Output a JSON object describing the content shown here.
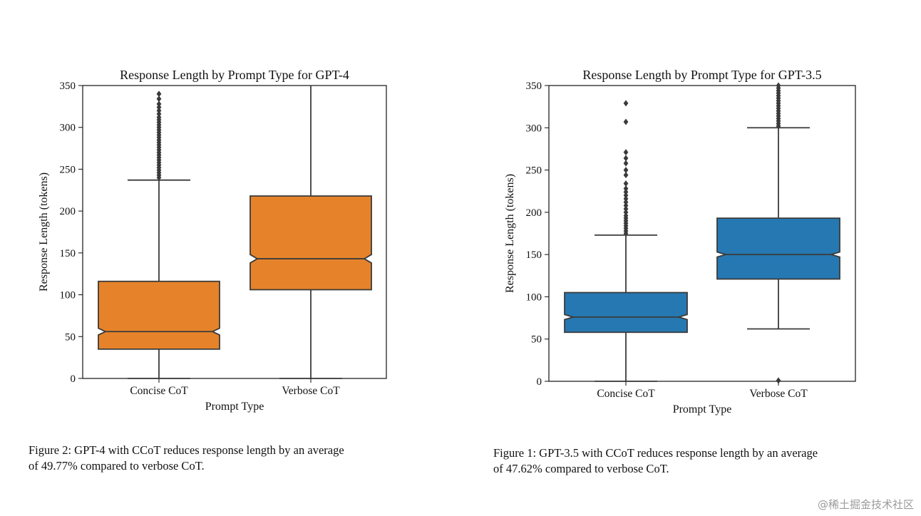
{
  "chart_data": [
    {
      "type": "boxplot",
      "title": "Response Length by Prompt Type for GPT-4",
      "xlabel": "Prompt Type",
      "ylabel": "Response Length (tokens)",
      "ylim": [
        0,
        350
      ],
      "yticks": [
        0,
        50,
        100,
        150,
        200,
        250,
        300,
        350
      ],
      "notched": true,
      "color": "#E6832A",
      "categories": [
        "Concise CoT",
        "Verbose CoT"
      ],
      "boxes": [
        {
          "category": "Concise CoT",
          "whisker_low": 0,
          "q1": 35,
          "median": 56,
          "q3": 116,
          "whisker_high": 237,
          "notch_low": 52,
          "notch_high": 60,
          "outliers": [
            240,
            243,
            246,
            249,
            252,
            255,
            258,
            261,
            264,
            267,
            270,
            273,
            276,
            279,
            282,
            285,
            288,
            291,
            294,
            297,
            300,
            303,
            306,
            309,
            312,
            316,
            320,
            324,
            328,
            334,
            340
          ]
        },
        {
          "category": "Verbose CoT",
          "whisker_low": 0,
          "q1": 106,
          "median": 143,
          "q3": 218,
          "whisker_high": 350,
          "notch_low": 138,
          "notch_high": 148,
          "outliers": []
        }
      ],
      "caption": [
        "Figure 2: GPT-4 with CCoT reduces response length by an average",
        "of 49.77% compared to verbose CoT."
      ]
    },
    {
      "type": "boxplot",
      "title": "Response Length by Prompt Type for GPT-3.5",
      "xlabel": "Prompt Type",
      "ylabel": "Response Length (tokens)",
      "ylim": [
        0,
        350
      ],
      "yticks": [
        0,
        50,
        100,
        150,
        200,
        250,
        300,
        350
      ],
      "notched": true,
      "color": "#2678B2",
      "categories": [
        "Concise CoT",
        "Verbose CoT"
      ],
      "boxes": [
        {
          "category": "Concise CoT",
          "whisker_low": 0,
          "q1": 58,
          "median": 76,
          "q3": 105,
          "whisker_high": 173,
          "notch_low": 73,
          "notch_high": 79,
          "outliers": [
            175,
            178,
            181,
            184,
            187,
            190,
            193,
            196,
            200,
            204,
            208,
            212,
            216,
            220,
            224,
            228,
            234,
            244,
            250,
            258,
            264,
            271,
            307,
            329
          ]
        },
        {
          "category": "Verbose CoT",
          "whisker_low": 62,
          "q1": 121,
          "median": 150,
          "q3": 193,
          "whisker_high": 300,
          "notch_low": 147,
          "notch_high": 153,
          "outliers": [
            1,
            302,
            305,
            308,
            311,
            314,
            317,
            320,
            323,
            326,
            329,
            332,
            335,
            338,
            341,
            344,
            347,
            350
          ]
        }
      ],
      "caption": [
        "Figure 1: GPT-3.5 with CCoT reduces response length by an average",
        "of 47.62% compared to verbose CoT."
      ]
    }
  ],
  "watermark": "@稀土掘金技术社区"
}
